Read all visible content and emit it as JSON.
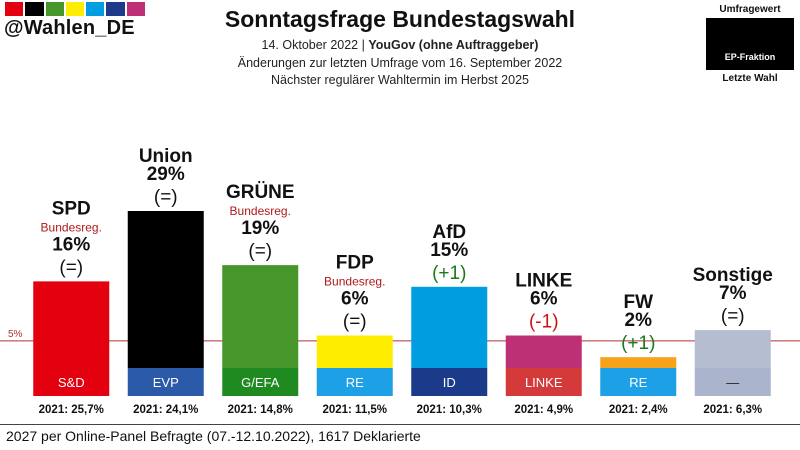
{
  "header": {
    "handle": "@Wahlen_DE",
    "flag_colors": [
      "#e3000f",
      "#000000",
      "#46962b",
      "#ffed00",
      "#009ee0",
      "#1e3a8a",
      "#be3075"
    ],
    "title": "Sonntagsfrage Bundestagswahl",
    "subtitle_date": "14. Oktober 2022 | ",
    "subtitle_source": "YouGov (ohne Auftraggeber)",
    "subtitle_line2": "Änderungen zur letzten Umfrage vom 16. September 2022",
    "subtitle_line3": "Nächster regulärer Wahltermin im Herbst 2025"
  },
  "legend": {
    "top": "Umfragewert",
    "middle": "EP-Fraktion",
    "bottom": "Letzte Wahl"
  },
  "footer": "2027 per Online-Panel Befragte (07.-12.10.2022), 1617 Deklarierte",
  "chart_data": {
    "type": "bar",
    "title": "Sonntagsfrage Bundestagswahl",
    "ylim": [
      0,
      30
    ],
    "threshold": {
      "value": 5,
      "label": "5%"
    },
    "categories": [
      "SPD",
      "Union",
      "GRÜNE",
      "FDP",
      "AfD",
      "LINKE",
      "FW",
      "Sonstige"
    ],
    "values": [
      16,
      29,
      19,
      6,
      15,
      6,
      2,
      7
    ],
    "value_labels": [
      "16%",
      "29%",
      "19%",
      "6%",
      "15%",
      "6%",
      "2%",
      "7%"
    ],
    "changes": [
      "(=)",
      "(=)",
      "(=)",
      "(=)",
      "(+1)",
      "(-1)",
      "(+1)",
      "(=)"
    ],
    "government": [
      "Bundesreg.",
      "",
      "Bundesreg.",
      "Bundesreg.",
      "",
      "",
      "",
      ""
    ],
    "ep_groups": [
      "S&D",
      "EVP",
      "G/EFA",
      "RE",
      "ID",
      "LINKE",
      "RE",
      "—"
    ],
    "last_election": [
      "2021: 25,7%",
      "2021: 24,1%",
      "2021: 14,8%",
      "2021: 11,5%",
      "2021: 10,3%",
      "2021: 4,9%",
      "2021: 2,4%",
      "2021: 6,3%"
    ],
    "colors": [
      "#e3000f",
      "#000000",
      "#46962b",
      "#ffed00",
      "#009ee0",
      "#be3075",
      "#f7a21b",
      "#b5bdd0"
    ],
    "ep_colors": [
      "#e3000f",
      "#2b5aa8",
      "#1f8a1f",
      "#1ea0e6",
      "#1b3a8a",
      "#d53a3a",
      "#1ea0e6",
      "#aab4cc"
    ],
    "ep_text_colors": [
      "#ffffff",
      "#ffffff",
      "#ffffff",
      "#ffffff",
      "#ffffff",
      "#ffffff",
      "#ffffff",
      "#222222"
    ],
    "change_colors": [
      "#111111",
      "#111111",
      "#111111",
      "#111111",
      "#1a7a1a",
      "#cc1111",
      "#1a7a1a",
      "#111111"
    ]
  }
}
